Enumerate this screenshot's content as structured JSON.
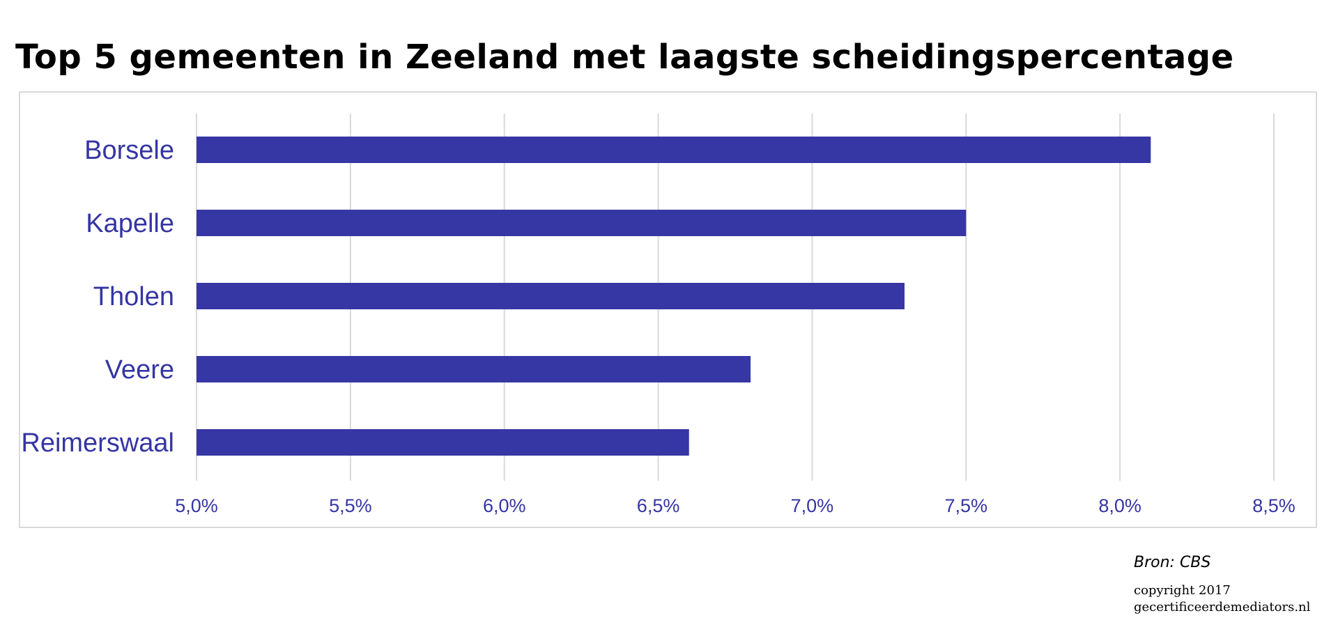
{
  "title": "Top 5 gemeenten in Zeeland met laagste scheidingspercentage",
  "source": "Bron: CBS",
  "copyright": {
    "line1": "copyright 2017",
    "line2": "gecertificeerdemediators.nl"
  },
  "colors": {
    "bar": "#3636a4",
    "label": "#3535a3",
    "grid": "#d9d9d9"
  },
  "chart_data": {
    "type": "bar",
    "orientation": "horizontal",
    "categories": [
      "Borsele",
      "Kapelle",
      "Tholen",
      "Veere",
      "Reimerswaal"
    ],
    "values": [
      8.1,
      7.5,
      7.3,
      6.8,
      6.6
    ],
    "unit": "%",
    "xlim": [
      5.0,
      8.5
    ],
    "xticks": [
      5.0,
      5.5,
      6.0,
      6.5,
      7.0,
      7.5,
      8.0,
      8.5
    ],
    "xtick_labels": [
      "5,0%",
      "5,5%",
      "6,0%",
      "6,5%",
      "7,0%",
      "7,5%",
      "8,0%",
      "8,5%"
    ],
    "grid": true,
    "legend": "none"
  }
}
